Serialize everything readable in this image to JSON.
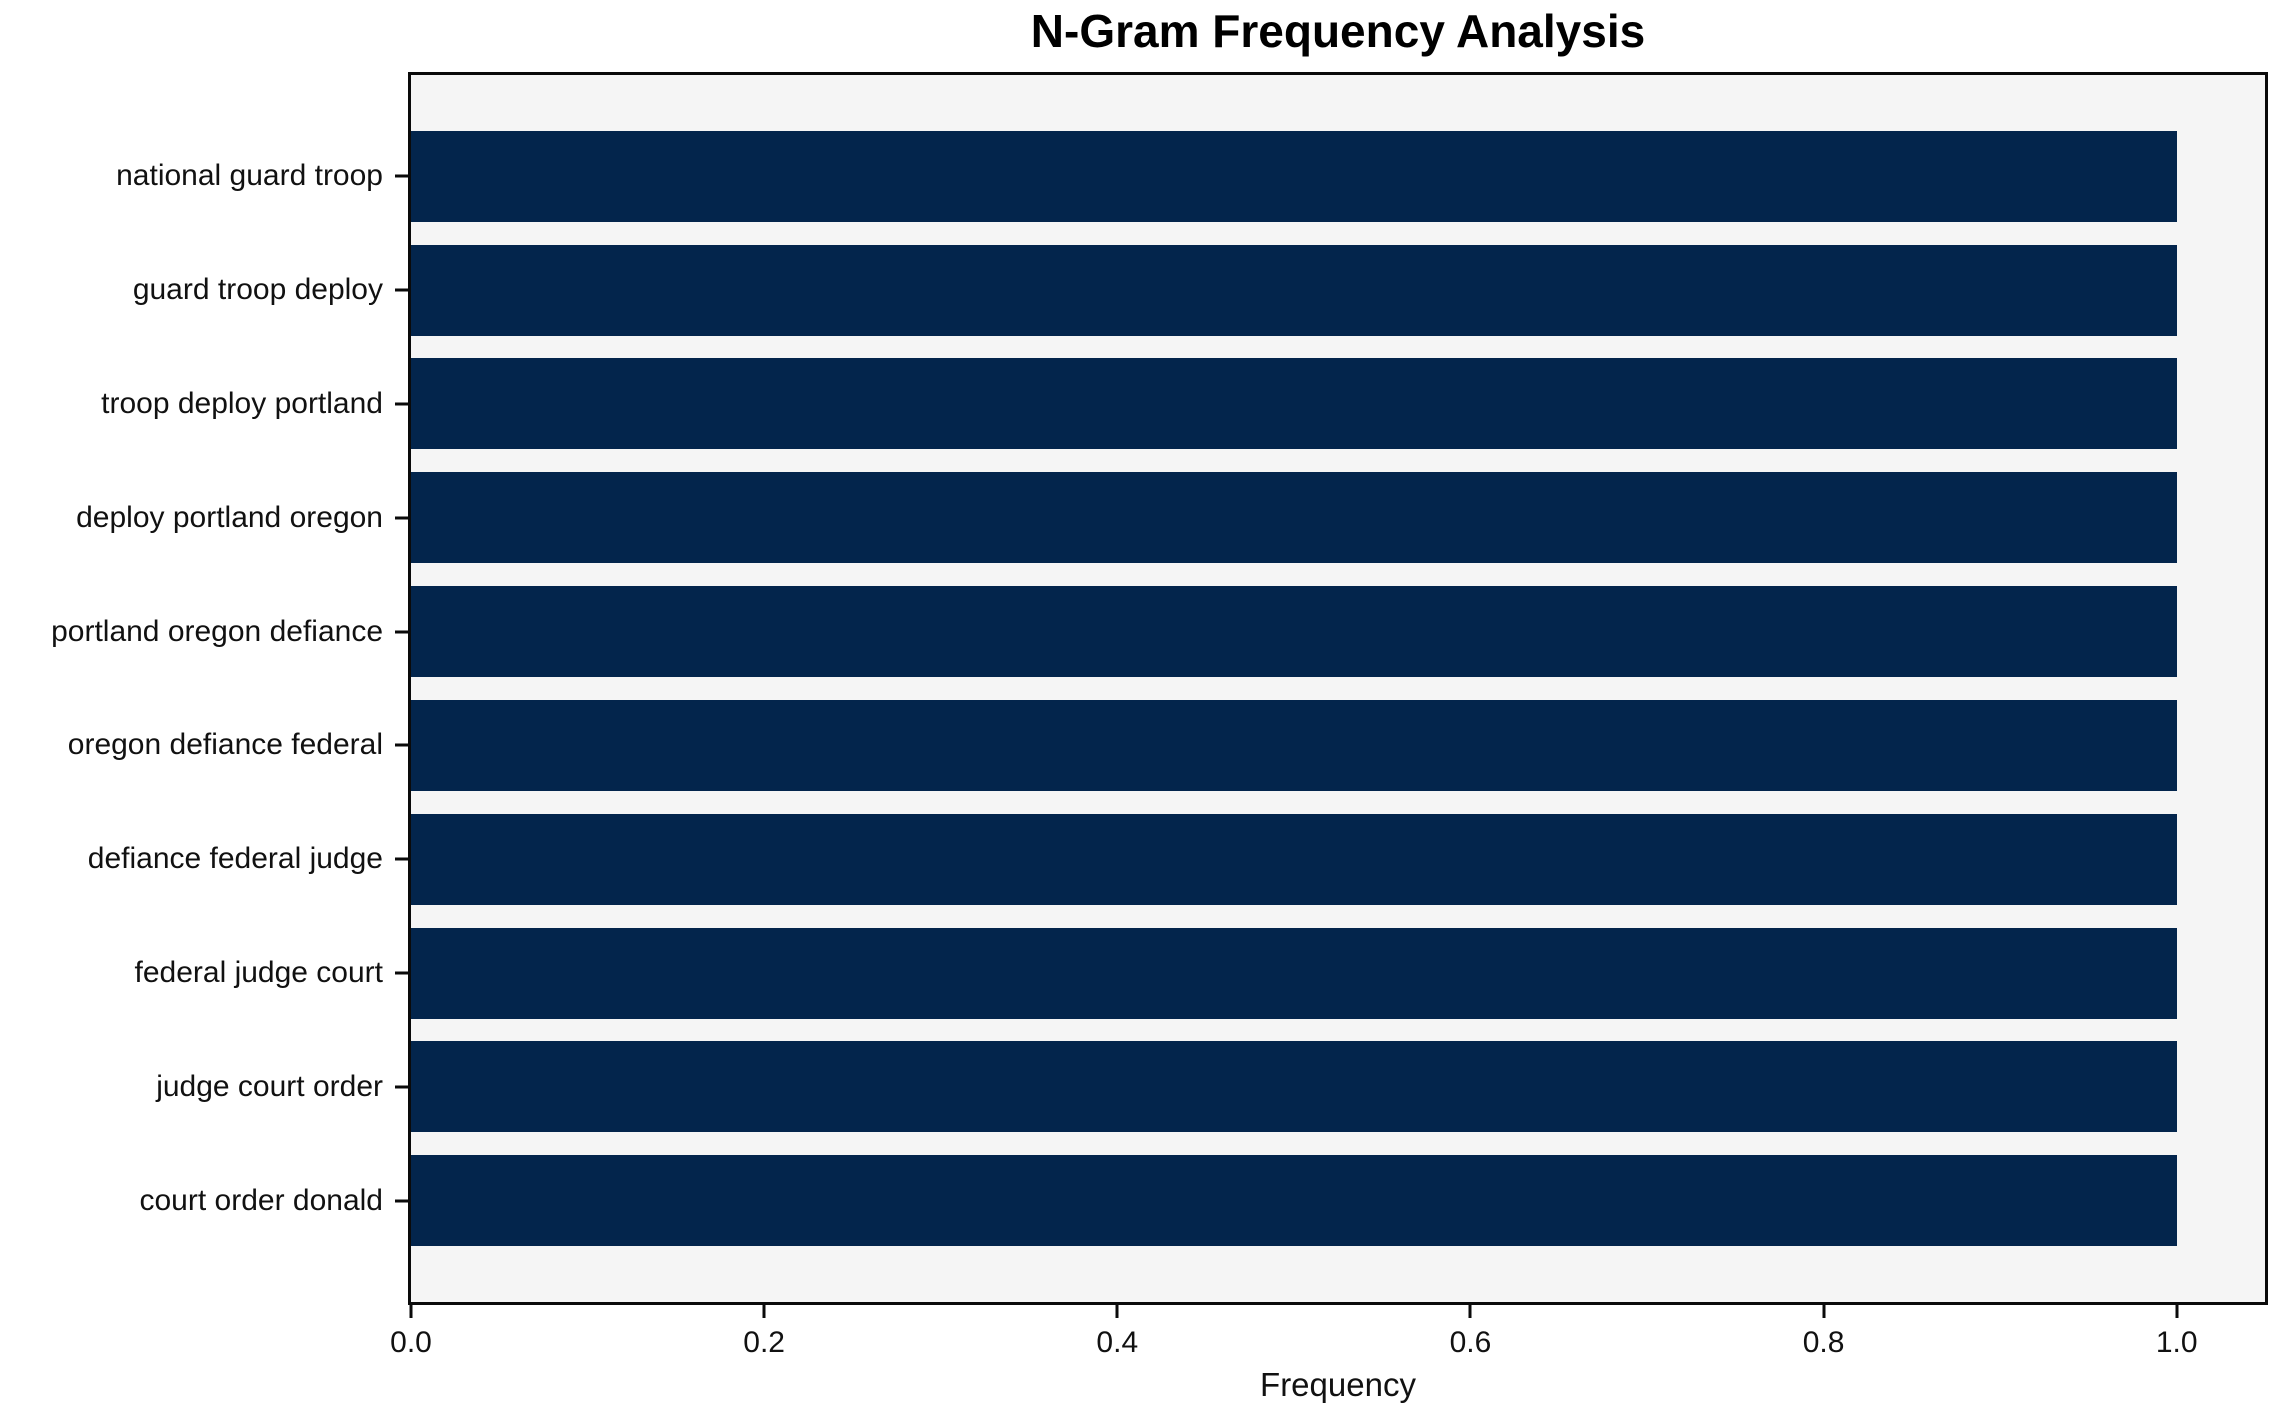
{
  "chart_data": {
    "type": "bar",
    "orientation": "horizontal",
    "title": "N-Gram Frequency Analysis",
    "xlabel": "Frequency",
    "ylabel": "",
    "categories": [
      "national guard troop",
      "guard troop deploy",
      "troop deploy portland",
      "deploy portland oregon",
      "portland oregon defiance",
      "oregon defiance federal",
      "defiance federal judge",
      "federal judge court",
      "judge court order",
      "court order donald"
    ],
    "values": [
      1.0,
      1.0,
      1.0,
      1.0,
      1.0,
      1.0,
      1.0,
      1.0,
      1.0,
      1.0
    ],
    "xlim": [
      0,
      1.05
    ],
    "xticks": [
      0.0,
      0.2,
      0.4,
      0.6,
      0.8,
      1.0
    ],
    "xtick_labels": [
      "0.0",
      "0.2",
      "0.4",
      "0.6",
      "0.8",
      "1.0"
    ],
    "bar_height_fraction": 0.8,
    "bar_color": "#03254c",
    "plot_background": "#f5f5f5",
    "spine_color": "#0a0a0a",
    "grid": false,
    "legend": null
  }
}
